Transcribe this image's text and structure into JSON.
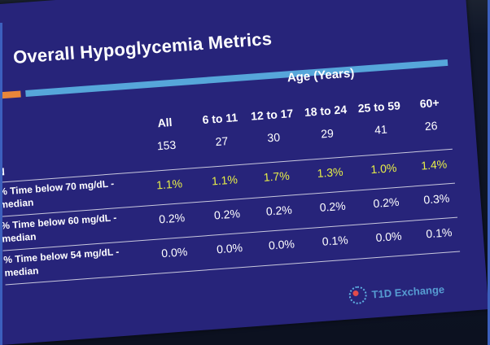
{
  "slide": {
    "title": "Overall Hypoglycemia Metrics",
    "age_header": "Age (Years)",
    "columns": [
      "All",
      "6 to 11",
      "12 to 17",
      "18 to 24",
      "25 to 59",
      "60+"
    ],
    "rows": [
      {
        "label": "N",
        "values": [
          "153",
          "27",
          "30",
          "29",
          "41",
          "26"
        ],
        "highlight": false
      },
      {
        "label": "% Time below 70 mg/dL - median",
        "values": [
          "1.1%",
          "1.1%",
          "1.7%",
          "1.3%",
          "1.0%",
          "1.4%"
        ],
        "highlight": true
      },
      {
        "label": "% Time below 60 mg/dL - median",
        "values": [
          "0.2%",
          "0.2%",
          "0.2%",
          "0.2%",
          "0.2%",
          "0.3%"
        ],
        "highlight": false
      },
      {
        "label": "% Time below 54 mg/dL - median",
        "values": [
          "0.0%",
          "0.0%",
          "0.0%",
          "0.1%",
          "0.0%",
          "0.1%"
        ],
        "highlight": false
      }
    ],
    "logo_text": "T1D Exchange",
    "colors": {
      "background": "#27247a",
      "highlight": "#e9f047",
      "accent_orange": "#e8863a",
      "accent_blue": "#56a6da"
    }
  }
}
